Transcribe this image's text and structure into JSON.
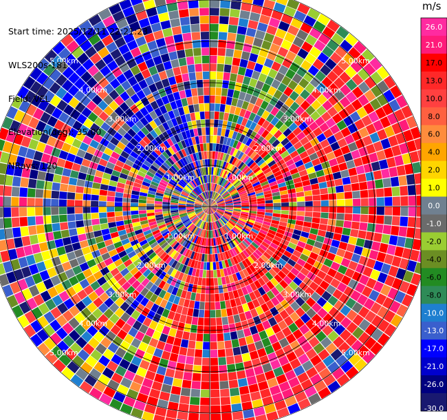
{
  "info": {
    "start_time": "Start time: 2025/12/11 22:21:23",
    "station": "WLS200s-181",
    "field": "Field: VEL",
    "elevation": "Elevation(deg): 35.00",
    "nrays": "NRays: 120"
  },
  "chart_data": {
    "type": "heatmap",
    "projection": "polar-ppi",
    "field": "VEL",
    "units": "m/s",
    "nrays": 120,
    "elevation_deg": 35.0,
    "range_rings_km": [
      1.0,
      2.0,
      3.0,
      4.0,
      5.0
    ],
    "range_ring_labels": [
      "1.00km",
      "2.00km",
      "3.00km",
      "4.00km",
      "5.00km"
    ],
    "max_range_km": 5.4,
    "range_gates": 28,
    "colorbar": {
      "unit_label": "m/s",
      "ticks": [
        "26.0",
        "21.0",
        "17.0",
        "13.0",
        "10.0",
        "8.0",
        "6.0",
        "4.0",
        "2.0",
        "1.0",
        "0.0",
        "-1.0",
        "-2.0",
        "-4.0",
        "-6.0",
        "-8.0",
        "-10.0",
        "-13.0",
        "-17.0",
        "-21.0",
        "-26.0",
        "-30.0"
      ],
      "colors": [
        "#ff2ba0",
        "#ff1b7a",
        "#ff0000",
        "#ff2828",
        "#ff4040",
        "#ff6040",
        "#ff8c3c",
        "#ffa500",
        "#ffd500",
        "#ffff00",
        "#708090",
        "#6b6b6b",
        "#9acd32",
        "#6b8e23",
        "#228b22",
        "#2e8b57",
        "#1e7fd0",
        "#3a5fcd",
        "#0000ff",
        "#0000cd",
        "#000080",
        "#191970"
      ]
    },
    "sectors": [
      {
        "az_from": 0,
        "az_to": 12,
        "dominant": "mixed"
      },
      {
        "az_from": 12,
        "az_to": 40,
        "dominant": "green-gray"
      },
      {
        "az_from": 40,
        "az_to": 110,
        "dominant": "red"
      },
      {
        "az_from": 110,
        "az_to": 200,
        "dominant": "red"
      },
      {
        "az_from": 300,
        "az_to": 345,
        "dominant": "blue"
      }
    ]
  }
}
